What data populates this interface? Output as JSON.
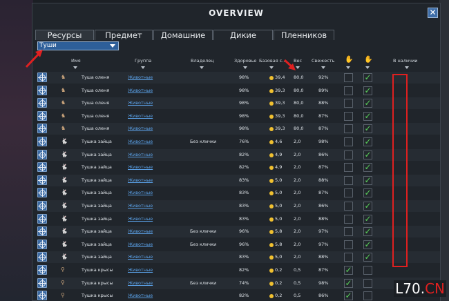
{
  "window": {
    "title": "OVERVIEW",
    "close_label": "✕"
  },
  "tabs": [
    {
      "label": "Ресурсы",
      "active": true
    },
    {
      "label": "Предмет",
      "active": false
    },
    {
      "label": "Домашние",
      "active": false
    },
    {
      "label": "Дикие",
      "active": false
    },
    {
      "label": "Пленников",
      "active": false
    }
  ],
  "filter": {
    "selected": "Туши"
  },
  "columns": {
    "name": "Имя",
    "group": "Группа",
    "owner": "Владелец",
    "health": "Здоровье",
    "base_value": "Базовая с...",
    "weight": "Вес",
    "freshness": "Свежесть",
    "in_stock": "В наличии"
  },
  "rows": [
    {
      "name": "Туша оленя",
      "group": "Животные",
      "owner": "",
      "health": "98%",
      "value": "39,4",
      "weight": "80,0",
      "fresh": "92%",
      "c1": false,
      "c2": true,
      "icon": "deer-icon"
    },
    {
      "name": "Туша оленя",
      "group": "Животные",
      "owner": "",
      "health": "98%",
      "value": "39,3",
      "weight": "80,0",
      "fresh": "89%",
      "c1": false,
      "c2": true,
      "icon": "deer-icon"
    },
    {
      "name": "Туша оленя",
      "group": "Животные",
      "owner": "",
      "health": "98%",
      "value": "39,3",
      "weight": "80,0",
      "fresh": "88%",
      "c1": false,
      "c2": true,
      "icon": "deer-icon"
    },
    {
      "name": "Туша оленя",
      "group": "Животные",
      "owner": "",
      "health": "98%",
      "value": "39,3",
      "weight": "80,0",
      "fresh": "87%",
      "c1": false,
      "c2": true,
      "icon": "deer-icon"
    },
    {
      "name": "Туша оленя",
      "group": "Животные",
      "owner": "",
      "health": "98%",
      "value": "39,3",
      "weight": "80,0",
      "fresh": "87%",
      "c1": false,
      "c2": true,
      "icon": "deer-icon"
    },
    {
      "name": "Тушка зайца",
      "group": "Животные",
      "owner": "Без клички",
      "health": "76%",
      "value": "4,6",
      "weight": "2,0",
      "fresh": "98%",
      "c1": false,
      "c2": true,
      "icon": "rabbit-icon"
    },
    {
      "name": "Тушка зайца",
      "group": "Животные",
      "owner": "",
      "health": "82%",
      "value": "4,9",
      "weight": "2,0",
      "fresh": "86%",
      "c1": false,
      "c2": true,
      "icon": "rabbit-icon"
    },
    {
      "name": "Тушка зайца",
      "group": "Животные",
      "owner": "",
      "health": "82%",
      "value": "4,9",
      "weight": "2,0",
      "fresh": "87%",
      "c1": false,
      "c2": true,
      "icon": "rabbit-icon"
    },
    {
      "name": "Тушка зайца",
      "group": "Животные",
      "owner": "",
      "health": "83%",
      "value": "5,0",
      "weight": "2,0",
      "fresh": "88%",
      "c1": false,
      "c2": true,
      "icon": "rabbit-icon"
    },
    {
      "name": "Тушка зайца",
      "group": "Животные",
      "owner": "",
      "health": "83%",
      "value": "5,0",
      "weight": "2,0",
      "fresh": "87%",
      "c1": false,
      "c2": true,
      "icon": "rabbit-icon"
    },
    {
      "name": "Тушка зайца",
      "group": "Животные",
      "owner": "",
      "health": "83%",
      "value": "5,0",
      "weight": "2,0",
      "fresh": "86%",
      "c1": false,
      "c2": true,
      "icon": "rabbit-icon"
    },
    {
      "name": "Тушка зайца",
      "group": "Животные",
      "owner": "",
      "health": "83%",
      "value": "5,0",
      "weight": "2,0",
      "fresh": "88%",
      "c1": false,
      "c2": true,
      "icon": "rabbit-icon"
    },
    {
      "name": "Тушка зайца",
      "group": "Животные",
      "owner": "Без клички",
      "health": "96%",
      "value": "5,8",
      "weight": "2,0",
      "fresh": "97%",
      "c1": false,
      "c2": true,
      "icon": "rabbit-icon"
    },
    {
      "name": "Тушка зайца",
      "group": "Животные",
      "owner": "Без клички",
      "health": "96%",
      "value": "5,8",
      "weight": "2,0",
      "fresh": "97%",
      "c1": false,
      "c2": true,
      "icon": "rabbit-icon"
    },
    {
      "name": "Тушка зайца",
      "group": "Животные",
      "owner": "",
      "health": "83%",
      "value": "5,0",
      "weight": "2,0",
      "fresh": "88%",
      "c1": false,
      "c2": true,
      "icon": "rabbit-icon"
    },
    {
      "name": "Тушка крысы",
      "group": "Животные",
      "owner": "",
      "health": "82%",
      "value": "0,2",
      "weight": "0,5",
      "fresh": "87%",
      "c1": true,
      "c2": false,
      "icon": "rat-icon"
    },
    {
      "name": "Тушка крысы",
      "group": "Животные",
      "owner": "Без клички",
      "health": "74%",
      "value": "0,2",
      "weight": "0,5",
      "fresh": "98%",
      "c1": true,
      "c2": false,
      "icon": "rat-icon"
    },
    {
      "name": "Тушка крысы",
      "group": "Животные",
      "owner": "",
      "health": "82%",
      "value": "0,2",
      "weight": "0,5",
      "fresh": "86%",
      "c1": true,
      "c2": false,
      "icon": "rat-icon"
    }
  ],
  "watermark": {
    "prefix": "L70.",
    "suffix": "CN"
  },
  "colors": {
    "highlight": "#e02020",
    "check": "#5ad05a",
    "link": "#5aa0e6",
    "button": "#3b6aa3"
  }
}
